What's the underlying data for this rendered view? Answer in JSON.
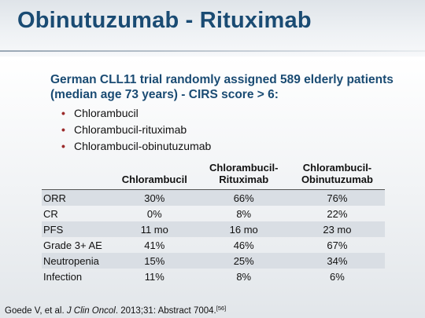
{
  "title": "Obinutuzumab - Rituximab",
  "intro": "German CLL11 trial randomly assigned 589 elderly patients (median age 73 years) - CIRS score > 6:",
  "bullets": [
    "Chlorambucil",
    "Chlorambucil-rituximab",
    "Chlorambucil-obinutuzumab"
  ],
  "table": {
    "headers": [
      [
        "Chlorambucil"
      ],
      [
        "Chlorambucil-",
        "Rituximab"
      ],
      [
        "Chlorambucil-",
        "Obinutuzumab"
      ]
    ],
    "rows": [
      {
        "label": "ORR",
        "values": [
          "30%",
          "66%",
          "76%"
        ]
      },
      {
        "label": "CR",
        "values": [
          "0%",
          "8%",
          "22%"
        ]
      },
      {
        "label": "PFS",
        "values": [
          "11 mo",
          "16 mo",
          "23 mo"
        ]
      },
      {
        "label": "Grade 3+ AE",
        "values": [
          "41%",
          "46%",
          "67%"
        ]
      },
      {
        "label": "Neutropenia",
        "values": [
          "15%",
          "25%",
          "34%"
        ]
      },
      {
        "label": "Infection",
        "values": [
          "11%",
          "8%",
          "6%"
        ]
      }
    ]
  },
  "citation": {
    "authors": "Goede V, et al. ",
    "journal": "J Clin Oncol",
    "details": ". 2013;31: Abstract 7004.",
    "ref": "[56]"
  },
  "colors": {
    "title": "#1a4b73",
    "bullet": "#9b2a2a",
    "row_shade": "#d9dee4"
  }
}
